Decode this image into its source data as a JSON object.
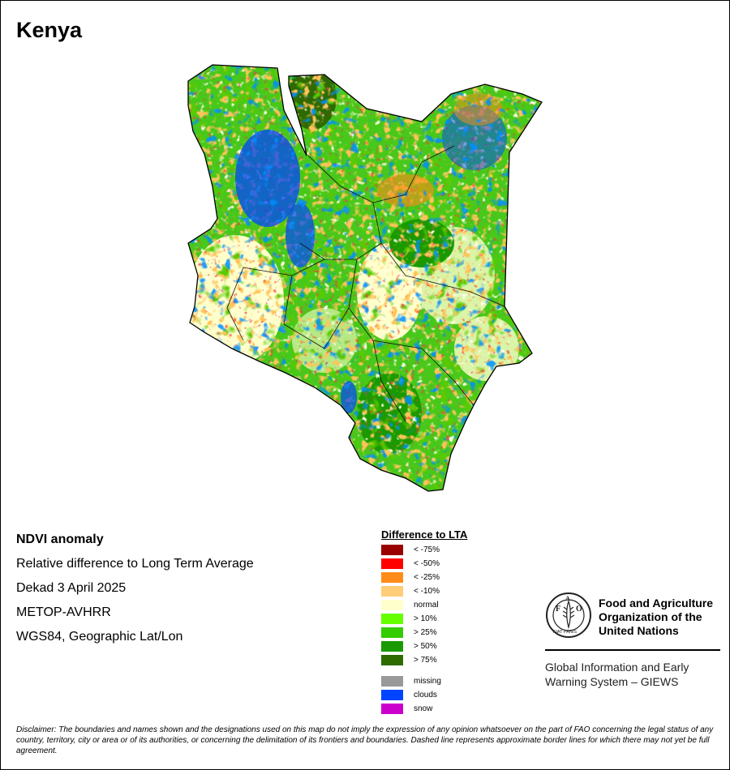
{
  "title": "Kenya",
  "info": {
    "heading": "NDVI anomaly",
    "subtitle": "Relative difference to Long Term Average",
    "period": "Dekad 3 April 2025",
    "sensor": "METOP-AVHRR",
    "projection": "WGS84, Geographic Lat/Lon"
  },
  "legend": {
    "title": "Difference to LTA",
    "items": [
      {
        "label": "< -75%",
        "color": "#990000"
      },
      {
        "label": "< -50%",
        "color": "#ff0000"
      },
      {
        "label": "< -25%",
        "color": "#ff8c1a"
      },
      {
        "label": "< -10%",
        "color": "#ffcc77"
      },
      {
        "label": "normal",
        "color": "#ffffcc"
      },
      {
        "label": "> 10%",
        "color": "#66ff00"
      },
      {
        "label": "> 25%",
        "color": "#33cc00"
      },
      {
        "label": "> 50%",
        "color": "#1a9900"
      },
      {
        "label": "> 75%",
        "color": "#2d6b00"
      }
    ],
    "extra": [
      {
        "label": "missing",
        "color": "#999999"
      },
      {
        "label": "clouds",
        "color": "#0044ff"
      },
      {
        "label": "snow",
        "color": "#cc00cc"
      }
    ]
  },
  "fao": {
    "logo_letters": "FAO",
    "logo_motto": "FIAT PANIS",
    "org_line1": "Food and Agriculture",
    "org_line2": "Organization of the",
    "org_line3": "United Nations",
    "giews_line1": "Global Information and Early",
    "giews_line2": "Warning System – GIEWS"
  },
  "disclaimer": "Disclaimer: The boundaries and names shown and the designations used on this map do not imply the expression of any opinion whatsoever on the part of FAO concerning the legal status of any country, territory, city or area or of its authorities, or concerning the delimitation of its frontiers and boundaries. Dashed line represents approximate border lines for which there may not yet be full agreement."
}
